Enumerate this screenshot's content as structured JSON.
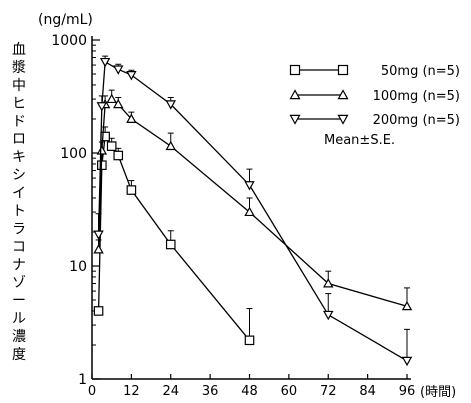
{
  "chart_data": {
    "type": "line",
    "title": "",
    "unit_label": "(ng/mL)",
    "ylabel": "血漿中ヒドロキシイトラコナゾール濃度",
    "xlabel": "(時間)",
    "yscale": "log",
    "ylim": [
      1,
      1000
    ],
    "xlim": [
      0,
      96
    ],
    "x_ticks": [
      0,
      12,
      24,
      36,
      48,
      60,
      72,
      84,
      96
    ],
    "y_ticks": [
      1,
      10,
      100,
      1000
    ],
    "grid": false,
    "legend_position": "top-right",
    "legend_note": "Mean±S.E.",
    "series": [
      {
        "name": "50mg (n=5)",
        "marker": "square",
        "x": [
          2,
          3,
          4,
          6,
          8,
          12,
          24,
          48
        ],
        "y": [
          4,
          78,
          140,
          115,
          95,
          47,
          15.5,
          2.2
        ],
        "err": [
          0,
          20,
          30,
          20,
          15,
          10,
          5,
          2
        ]
      },
      {
        "name": "100mg (n=5)",
        "marker": "triangle-up",
        "x": [
          2,
          3,
          4,
          6,
          8,
          12,
          24,
          48,
          72,
          96
        ],
        "y": [
          14,
          105,
          270,
          300,
          270,
          200,
          115,
          30,
          7,
          4.4
        ],
        "err": [
          3,
          20,
          50,
          60,
          40,
          30,
          35,
          10,
          2,
          2
        ]
      },
      {
        "name": "200mg (n=5)",
        "marker": "triangle-down",
        "x": [
          2,
          3,
          4,
          8,
          12,
          24,
          48,
          72,
          96
        ],
        "y": [
          19,
          260,
          640,
          550,
          490,
          270,
          52,
          3.7,
          1.45
        ],
        "err": [
          10,
          60,
          80,
          60,
          50,
          40,
          20,
          2,
          1.3
        ]
      }
    ]
  }
}
